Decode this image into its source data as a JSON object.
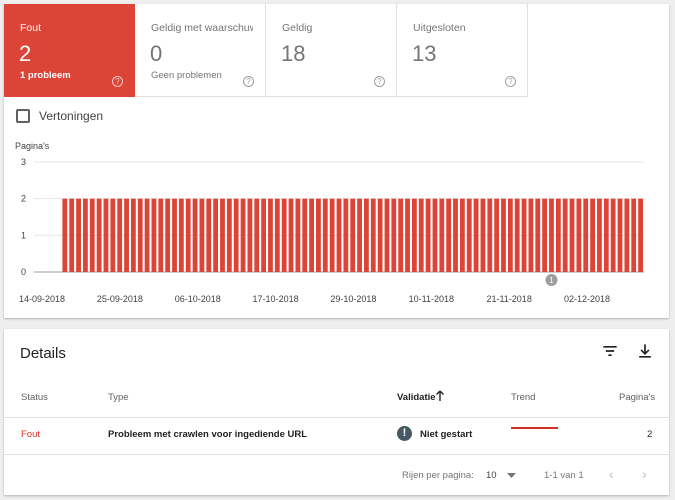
{
  "tiles": [
    {
      "label": "Fout",
      "count": "2",
      "sub": "1 probleem",
      "active": true
    },
    {
      "label": "Geldig met waarschuwingen",
      "count": "0",
      "sub": "Geen problemen",
      "active": false
    },
    {
      "label": "Geldig",
      "count": "18",
      "sub": "",
      "active": false
    },
    {
      "label": "Uitgesloten",
      "count": "13",
      "sub": "",
      "active": false
    }
  ],
  "checkbox_label": "Vertoningen",
  "chart_data": {
    "type": "bar",
    "ylabel": "Pagina's",
    "ylim": [
      0,
      3
    ],
    "yticks": [
      0,
      1,
      2,
      3
    ],
    "xtick_labels": [
      "14-09-2018",
      "25-09-2018",
      "06-10-2018",
      "17-10-2018",
      "29-10-2018",
      "10-11-2018",
      "21-11-2018",
      "02-12-2018"
    ],
    "color": "#db4437",
    "series": [
      {
        "values": [
          0,
          0,
          0,
          0,
          2,
          2,
          2,
          2,
          2,
          2,
          2,
          2,
          2,
          2,
          2,
          2,
          2,
          2,
          2,
          2,
          2,
          2,
          2,
          2,
          2,
          2,
          2,
          2,
          2,
          2,
          2,
          2,
          2,
          2,
          2,
          2,
          2,
          2,
          2,
          2,
          2,
          2,
          2,
          2,
          2,
          2,
          2,
          2,
          2,
          2,
          2,
          2,
          2,
          2,
          2,
          2,
          2,
          2,
          2,
          2,
          2,
          2,
          2,
          2,
          2,
          2,
          2,
          2,
          2,
          2,
          2,
          2,
          2,
          2,
          2,
          2,
          2,
          2,
          2,
          2,
          2,
          2,
          2,
          2,
          2,
          2,
          2,
          2,
          2
        ]
      }
    ],
    "annotation": {
      "label": "1",
      "at_index": 75
    }
  },
  "details": {
    "title": "Details",
    "columns": {
      "status": "Status",
      "type": "Type",
      "validation": "Validatie",
      "trend": "Trend",
      "pages": "Pagina's"
    },
    "rows": [
      {
        "status": "Fout",
        "type": "Probleem met crawlen voor ingediende URL",
        "validation": "Niet gestart",
        "pages": "2"
      }
    ],
    "footer": {
      "rows_per_page_label": "Rijen per pagina:",
      "rows_per_page": "10",
      "range": "1-1 van 1"
    }
  }
}
